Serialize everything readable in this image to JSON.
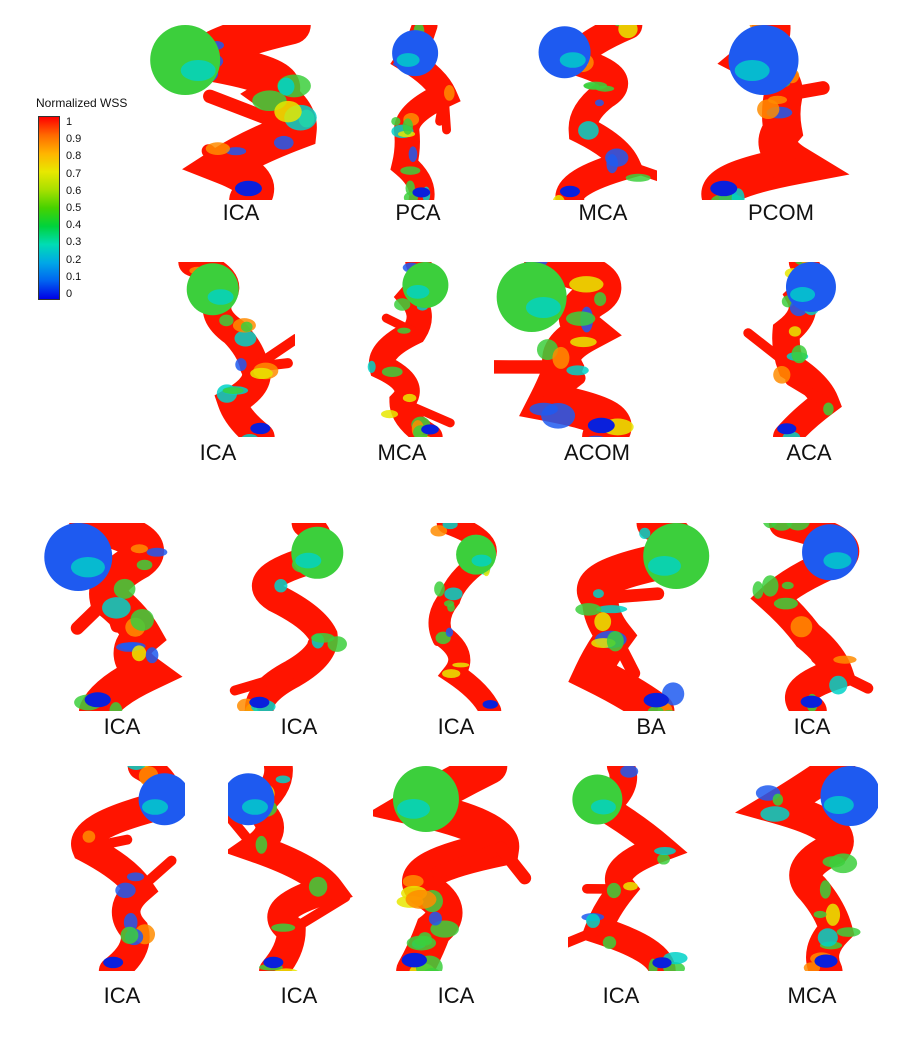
{
  "legend": {
    "title": "Normalized WSS",
    "ticks": [
      "1",
      "0.9",
      "0.8",
      "0.7",
      "0.6",
      "0.5",
      "0.4",
      "0.3",
      "0.2",
      "0.1",
      "0"
    ],
    "colors": [
      "#ff0000",
      "#ff6a00",
      "#ffb400",
      "#e8e800",
      "#a8e000",
      "#46d200",
      "#00d23c",
      "#00dcb4",
      "#00a8e6",
      "#0064f0",
      "#0000e6"
    ]
  },
  "figure_groups": [
    {
      "labels": [
        "ICA",
        "PCA",
        "MCA",
        "PCOM"
      ]
    },
    {
      "labels": [
        "ICA",
        "MCA",
        "ACOM",
        "ACA"
      ]
    },
    {
      "labels": [
        "ICA",
        "ICA",
        "ICA",
        "BA",
        "ICA"
      ]
    },
    {
      "labels": [
        "ICA",
        "ICA",
        "ICA",
        "ICA",
        "MCA"
      ]
    }
  ]
}
